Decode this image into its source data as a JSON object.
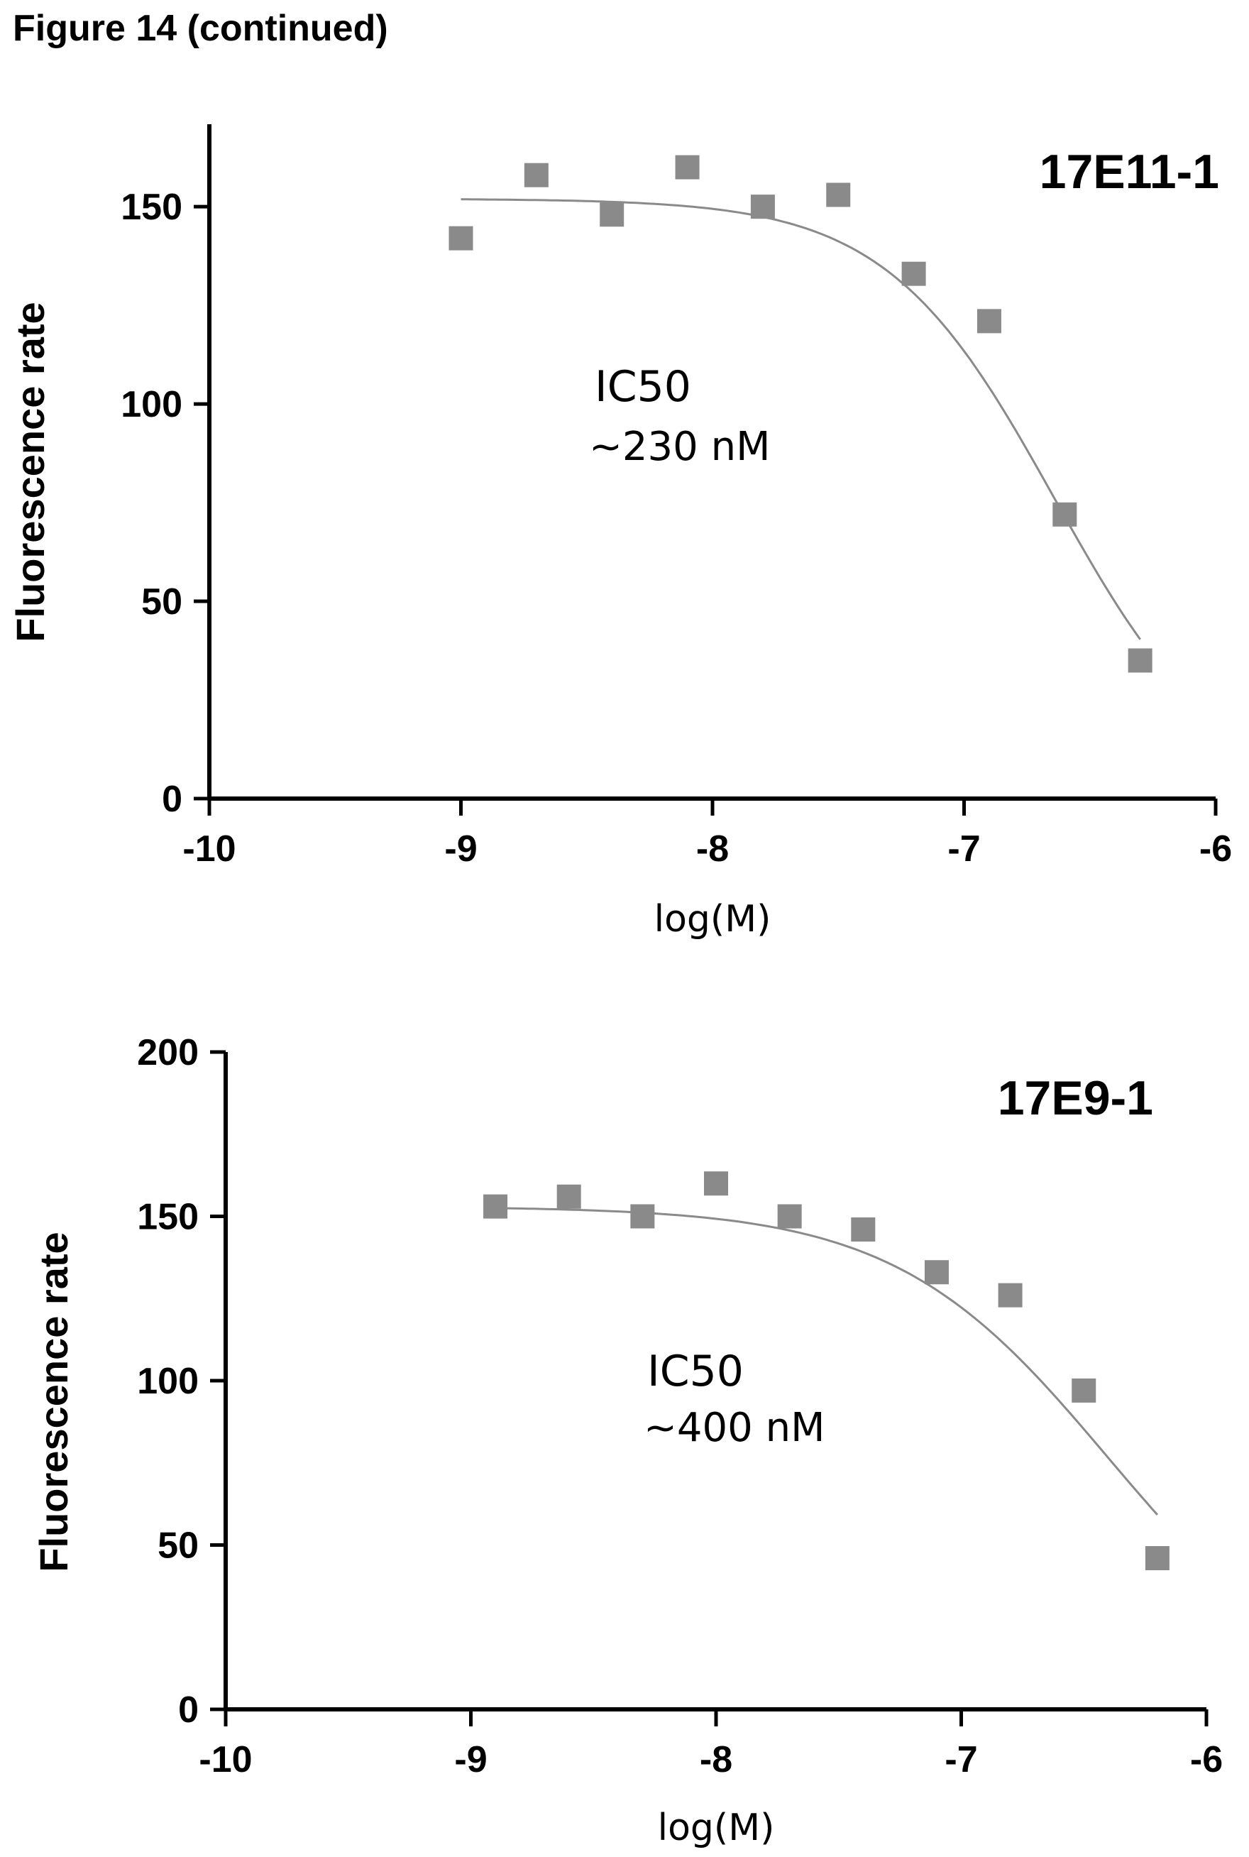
{
  "figure_title": "Figure 14 (continued)",
  "chart_data": [
    {
      "type": "scatter",
      "title": "17E11-1",
      "xlabel": "log(M)",
      "ylabel": "Fluorescence rate",
      "xlim": [
        -10,
        -6
      ],
      "ylim": [
        0,
        170
      ],
      "xticks": [
        -10,
        -9,
        -8,
        -7,
        -6
      ],
      "xtick_labels": [
        "-10",
        "-9",
        "-8",
        "-7",
        "-6"
      ],
      "yticks": [
        0,
        50,
        100,
        150
      ],
      "ytick_labels": [
        "0",
        "50",
        "100",
        "150"
      ],
      "annotation": [
        "IC50",
        "~230 nM"
      ],
      "marker": "square",
      "color": "#8a8a8a",
      "grid": false,
      "series": [
        {
          "x": [
            -9.0,
            -8.7,
            -8.4,
            -8.1,
            -7.8,
            -7.5,
            -7.2,
            -6.9,
            -6.6,
            -6.3
          ],
          "y": [
            142,
            158,
            148,
            160,
            150,
            153,
            133,
            121,
            72,
            35
          ]
        }
      ],
      "fit": {
        "top": 152,
        "bottom": 0,
        "log_ic50": -6.64,
        "hill": 1.3,
        "x_range": [
          -9.0,
          -6.3
        ]
      }
    },
    {
      "type": "scatter",
      "title": "17E9-1",
      "xlabel": "log(M)",
      "ylabel": "Fluorescence rate",
      "xlim": [
        -10,
        -6
      ],
      "ylim": [
        0,
        200
      ],
      "xticks": [
        -10,
        -9,
        -8,
        -7,
        -6
      ],
      "xtick_labels": [
        "-10",
        "-9",
        "-8",
        "-7",
        "-6"
      ],
      "yticks": [
        0,
        50,
        100,
        150,
        200
      ],
      "ytick_labels": [
        "0",
        "50",
        "100",
        "150",
        "200"
      ],
      "annotation": [
        "IC50",
        "~400 nM"
      ],
      "marker": "square",
      "color": "#8a8a8a",
      "grid": false,
      "series": [
        {
          "x": [
            -8.9,
            -8.6,
            -8.3,
            -8.0,
            -7.7,
            -7.4,
            -7.1,
            -6.8,
            -6.5,
            -6.2
          ],
          "y": [
            153,
            156,
            150,
            160,
            150,
            146,
            133,
            126,
            97,
            46
          ]
        }
      ],
      "fit": {
        "top": 153,
        "bottom": 0,
        "log_ic50": -6.4,
        "hill": 1.0,
        "x_range": [
          -8.9,
          -6.2
        ]
      }
    }
  ]
}
